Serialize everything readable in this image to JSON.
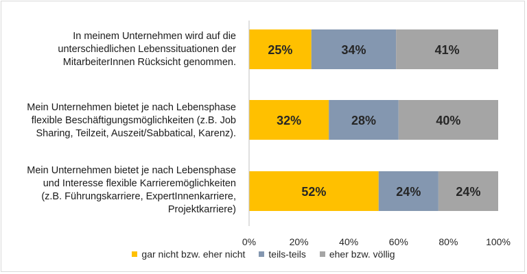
{
  "chart_data": {
    "type": "bar",
    "orientation": "horizontal",
    "stacked": true,
    "categories": [
      "In meinem Unternehmen wird auf die\nunterschiedlichen Lebenssituationen der\nMitarbeiterInnen Rücksicht genommen.",
      "Mein Unternehmen bietet je nach Lebensphase\nflexible Beschäftigungsmöglichkeiten (z.B. Job\nSharing, Teilzeit, Auszeit/Sabbatical, Karenz).",
      "Mein Unternehmen bietet je nach Lebensphase\nund Interesse flexible Karrieremöglichkeiten\n(z.B. Führungskarriere, ExpertInnenkarriere,\nProjektkarriere)"
    ],
    "series": [
      {
        "name": "gar nicht bzw. eher nicht",
        "color": "#FFC000",
        "values": [
          25,
          32,
          52
        ],
        "labels": [
          "25%",
          "32%",
          "52%"
        ]
      },
      {
        "name": "teils-teils",
        "color": "#8497B0",
        "values": [
          34,
          28,
          24
        ],
        "labels": [
          "34%",
          "28%",
          "24%"
        ]
      },
      {
        "name": "eher bzw. völlig",
        "color": "#A5A5A5",
        "values": [
          41,
          40,
          24
        ],
        "labels": [
          "41%",
          "40%",
          "24%"
        ]
      }
    ],
    "xlim": [
      0,
      100
    ],
    "xticks": [
      "0%",
      "20%",
      "40%",
      "60%",
      "80%",
      "100%"
    ],
    "legend_position": "bottom",
    "grid": false
  }
}
